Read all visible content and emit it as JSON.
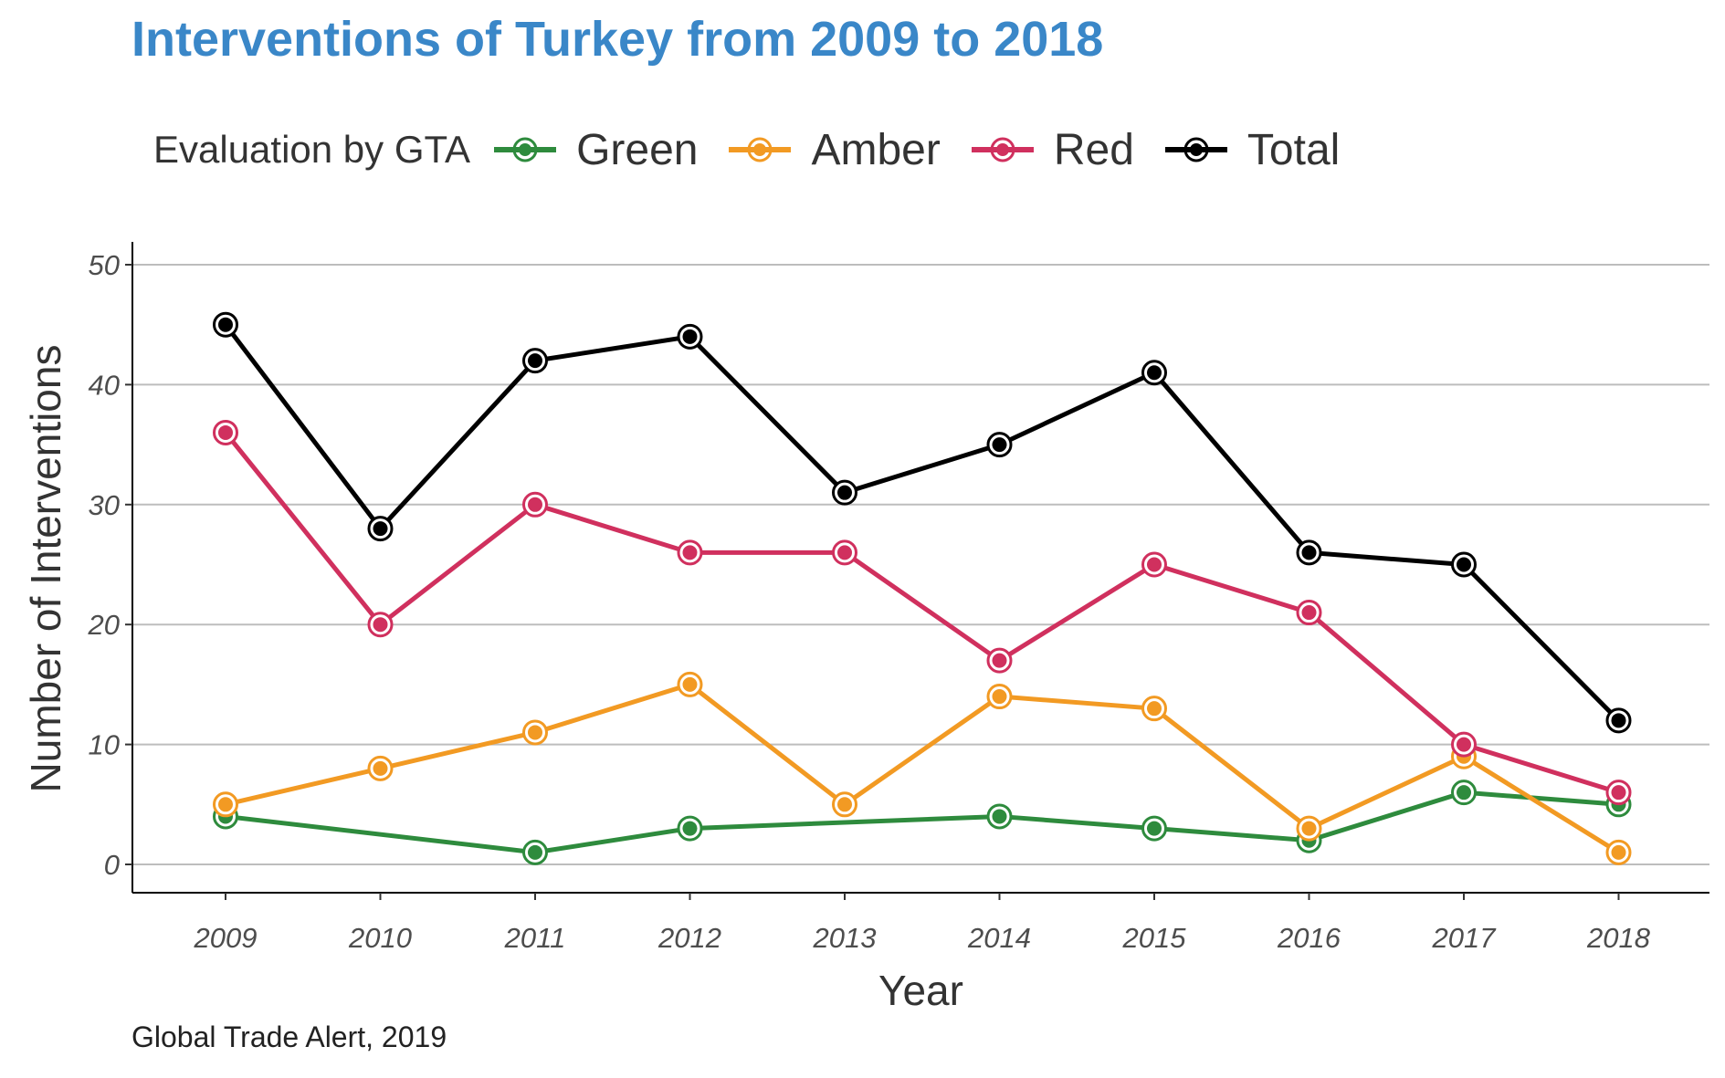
{
  "chart_data": {
    "type": "line",
    "title": "Interventions of Turkey from 2009 to 2018",
    "xlabel": "Year",
    "ylabel": "Number of Interventions",
    "caption": "Global Trade Alert, 2019",
    "legend_title": "Evaluation by GTA",
    "legend_position": "top",
    "grid": "horizontal major only",
    "categories": [
      "2009",
      "2010",
      "2011",
      "2012",
      "2013",
      "2014",
      "2015",
      "2016",
      "2017",
      "2018"
    ],
    "y_ticks": [
      "0",
      "10",
      "20",
      "30",
      "40",
      "50"
    ],
    "ylim": [
      0,
      50
    ],
    "series": [
      {
        "name": "Green",
        "color": "#2e8b3d",
        "values": [
          4,
          null,
          1,
          3,
          null,
          4,
          3,
          2,
          6,
          5
        ]
      },
      {
        "name": "Amber",
        "color": "#f29a23",
        "values": [
          5,
          8,
          11,
          15,
          5,
          14,
          13,
          3,
          9,
          1
        ]
      },
      {
        "name": "Red",
        "color": "#d0305e",
        "values": [
          36,
          20,
          30,
          26,
          26,
          17,
          25,
          21,
          10,
          6
        ]
      },
      {
        "name": "Total",
        "color": "#000000",
        "values": [
          45,
          28,
          42,
          44,
          31,
          35,
          41,
          26,
          25,
          12
        ]
      }
    ]
  }
}
